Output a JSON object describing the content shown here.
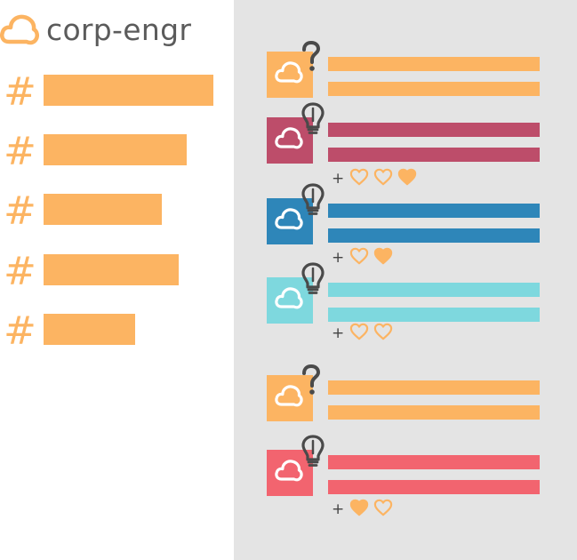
{
  "header": {
    "title": "corp-engr"
  },
  "channels": [
    {
      "symbol": "#",
      "width": 191
    },
    {
      "symbol": "#",
      "width": 161
    },
    {
      "symbol": "#",
      "width": 133
    },
    {
      "symbol": "#",
      "width": 152
    },
    {
      "symbol": "#",
      "width": 103
    }
  ],
  "reaction_symbol": "+",
  "colors": {
    "orange": "#fcb462",
    "maroon": "#bd4d6a",
    "blue": "#2e86b9",
    "cyan": "#7ed8de",
    "coral": "#f2646f",
    "panel": "#e4e4e4",
    "text": "#5b5b5b"
  },
  "messages": [
    {
      "color": "#fcb462",
      "badge": "question-mark",
      "reactions": null
    },
    {
      "color": "#bd4d6a",
      "badge": "lightbulb",
      "reactions": [
        "outline",
        "outline",
        "filled"
      ]
    },
    {
      "color": "#2e86b9",
      "badge": "lightbulb",
      "reactions": [
        "outline",
        "filled"
      ]
    },
    {
      "color": "#7ed8de",
      "badge": "lightbulb",
      "reactions": [
        "outline",
        "outline"
      ]
    },
    {
      "color": "#fcb462",
      "badge": "question-mark",
      "reactions": null
    },
    {
      "color": "#f2646f",
      "badge": "lightbulb",
      "reactions": [
        "filled",
        "outline"
      ]
    }
  ]
}
